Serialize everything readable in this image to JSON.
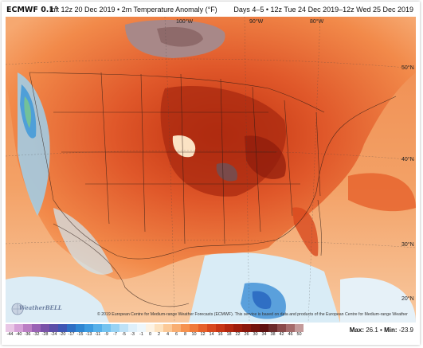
{
  "header": {
    "model": "ECMWF 0.1°",
    "init": "Init 12z 20 Dec 2019 • 2m Temperature Anomaly (°F)",
    "valid": "Days 4–5 • 12z Tue 24 Dec 2019–12z Wed 25 Dec 2019"
  },
  "map": {
    "longitudes": [
      "100°W",
      "90°W",
      "80°W"
    ],
    "latitudes": [
      "50°N",
      "40°N",
      "30°N",
      "20°N"
    ]
  },
  "colorbar": {
    "ticks": [
      "-44",
      "-40",
      "-36",
      "-32",
      "-28",
      "-24",
      "-20",
      "-17",
      "-15",
      "-13",
      "-11",
      "-9",
      "-7",
      "-5",
      "-3",
      "-1",
      "0",
      "2",
      "4",
      "6",
      "8",
      "10",
      "12",
      "14",
      "16",
      "18",
      "22",
      "26",
      "30",
      "34",
      "38",
      "42",
      "46",
      "50"
    ],
    "colors": [
      "#e9c7e6",
      "#d6a2d8",
      "#bb7fc4",
      "#9a63b5",
      "#7a52a8",
      "#5b4ea8",
      "#3f56b4",
      "#2f6fc4",
      "#2f86d2",
      "#3d9be0",
      "#56b0ea",
      "#74c3f0",
      "#98d3f4",
      "#bfe2f7",
      "#dff0fb",
      "#eef7fc",
      "#fdf3e4",
      "#fde2bf",
      "#fcc997",
      "#f9ae72",
      "#f6924f",
      "#f07a3a",
      "#e6602a",
      "#d8481e",
      "#c73515",
      "#b3270f",
      "#9e1d0c",
      "#8a170c",
      "#73130d",
      "#5e1010",
      "#6b2a2a",
      "#8a4a4a",
      "#a56b6b",
      "#c49a9a"
    ]
  },
  "stats": {
    "max_label": "Max:",
    "max_value": "26.1",
    "sep": "•",
    "min_label": "Min:",
    "min_value": "-23.9"
  },
  "credit": {
    "copyright": "© 2019 European Centre for Medium-range Weather Forecasts (ECMWF). This service is based on data and products of the European Centre for Medium-range Weather Forecasts (ECMWF).",
    "logo": "WeatherBELL"
  }
}
